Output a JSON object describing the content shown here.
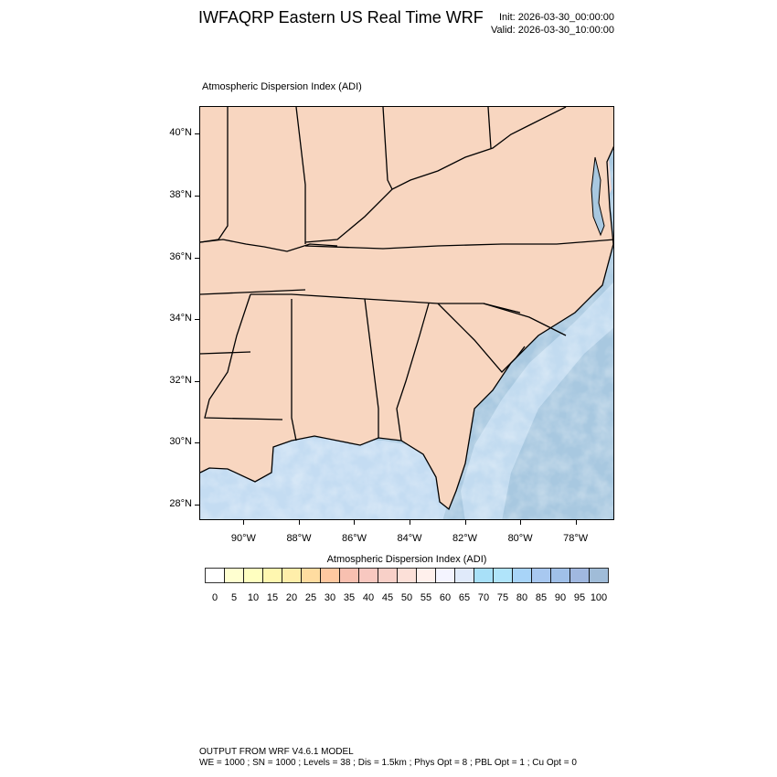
{
  "header": {
    "title": "IWFAQRP Eastern US Real Time WRF",
    "init": "Init: 2026-03-30_00:00:00",
    "valid": "Valid: 2026-03-30_10:00:00"
  },
  "map": {
    "subtitle": "Atmospheric Dispersion Index   (ADI)",
    "extent": {
      "lon": [
        -91.6,
        -76.6
      ],
      "lat": [
        27.5,
        40.9
      ]
    },
    "lat_labels": [
      "40°N",
      "38°N",
      "36°N",
      "34°N",
      "32°N",
      "30°N",
      "28°N"
    ],
    "lat_values": [
      40,
      38,
      36,
      34,
      32,
      30,
      28
    ],
    "lon_labels": [
      "90°W",
      "88°W",
      "86°W",
      "84°W",
      "82°W",
      "80°W",
      "78°W"
    ],
    "lon_values": [
      -90,
      -88,
      -86,
      -84,
      -82,
      -80,
      -78
    ],
    "colors": {
      "ocean": "#a8c8e0",
      "gulf_shelf": "#c0dcf0",
      "land_low": "#fff3b8",
      "land_mid": "#f8c8b8",
      "land_high": "#a8c4dc"
    }
  },
  "legend": {
    "title": "Atmospheric Dispersion Index  (ADI)",
    "labels": [
      "0",
      "5",
      "10",
      "15",
      "20",
      "25",
      "30",
      "35",
      "40",
      "45",
      "50",
      "55",
      "60",
      "65",
      "70",
      "75",
      "80",
      "85",
      "90",
      "95",
      "100"
    ],
    "colors": [
      "#ffffff",
      "#ffffd0",
      "#ffffc0",
      "#fff7b0",
      "#ffeeaa",
      "#ffdca0",
      "#ffc8a0",
      "#f8c0b0",
      "#f8c8c0",
      "#f8d0c8",
      "#fce0d8",
      "#fff0ec",
      "#f4f4ff",
      "#e0eafa",
      "#a8e0f8",
      "#b0e4fa",
      "#a8d4f8",
      "#a8c8f0",
      "#a0c0e8",
      "#a0b8e0",
      "#a0bcd8"
    ]
  },
  "footer": {
    "line1": "OUTPUT FROM WRF V4.6.1 MODEL",
    "line2": "WE = 1000 ; SN = 1000 ; Levels = 38 ; Dis = 1.5km ; Phys Opt = 8 ; PBL Opt = 1 ; Cu Opt = 0"
  }
}
